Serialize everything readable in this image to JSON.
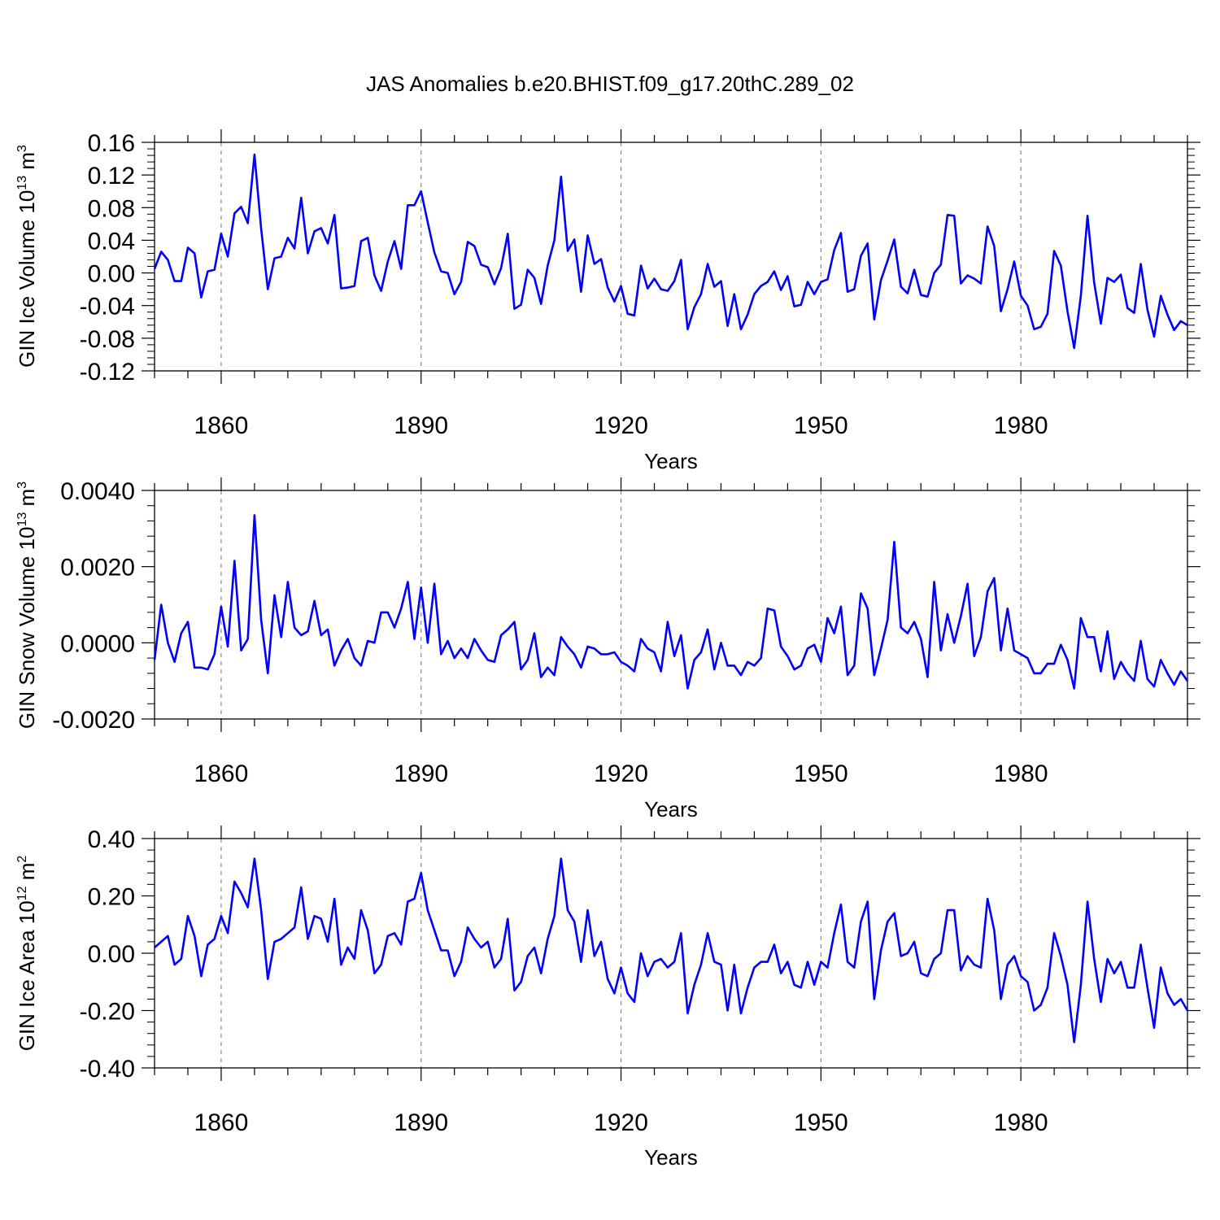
{
  "figure": {
    "title": "JAS Anomalies b.e20.BHIST.f09_g17.20thC.289_02",
    "line_color": "#0000ff",
    "grid_color": "#888888"
  },
  "chart_data": [
    {
      "type": "line",
      "name": "ice-volume",
      "ylabel": "GIN Ice Volume 10",
      "ylabel_exp": "13",
      "ylabel_unit": " m",
      "ylabel_unit_exp": "3",
      "xlabel": "Years",
      "xlim": [
        1850,
        2005
      ],
      "ylim": [
        -0.12,
        0.16
      ],
      "yticks": [
        -0.12,
        -0.08,
        -0.04,
        0.0,
        0.04,
        0.08,
        0.12,
        0.16
      ],
      "ytick_labels": [
        "-0.12",
        "-0.08",
        "-0.04",
        "0.00",
        "0.04",
        "0.08",
        "0.12",
        "0.16"
      ],
      "xticks": [
        1860,
        1890,
        1920,
        1950,
        1980
      ],
      "xtick_labels": [
        "1860",
        "1890",
        "1920",
        "1950",
        "1980"
      ],
      "x_start": 1850,
      "values": [
        0.005,
        0.026,
        0.016,
        -0.01,
        -0.01,
        0.031,
        0.024,
        -0.03,
        0.002,
        0.004,
        0.048,
        0.02,
        0.073,
        0.081,
        0.061,
        0.145,
        0.054,
        -0.02,
        0.018,
        0.02,
        0.043,
        0.03,
        0.092,
        0.024,
        0.051,
        0.055,
        0.036,
        0.071,
        -0.019,
        -0.018,
        -0.016,
        0.039,
        0.043,
        -0.003,
        -0.022,
        0.014,
        0.039,
        0.005,
        0.083,
        0.083,
        0.1,
        0.062,
        0.025,
        0.002,
        0.0,
        -0.026,
        -0.011,
        0.038,
        0.033,
        0.01,
        0.007,
        -0.014,
        0.006,
        0.048,
        -0.044,
        -0.039,
        0.004,
        -0.006,
        -0.038,
        0.009,
        0.04,
        0.118,
        0.027,
        0.041,
        -0.023,
        0.046,
        0.011,
        0.017,
        -0.018,
        -0.035,
        -0.016,
        -0.05,
        -0.052,
        0.009,
        -0.019,
        -0.007,
        -0.02,
        -0.022,
        -0.01,
        0.016,
        -0.069,
        -0.042,
        -0.026,
        0.011,
        -0.017,
        -0.01,
        -0.065,
        -0.026,
        -0.069,
        -0.051,
        -0.026,
        -0.016,
        -0.011,
        0.002,
        -0.021,
        -0.004,
        -0.041,
        -0.039,
        -0.011,
        -0.026,
        -0.011,
        -0.008,
        0.028,
        0.049,
        -0.023,
        -0.02,
        0.021,
        0.036,
        -0.057,
        -0.009,
        0.015,
        0.041,
        -0.017,
        -0.025,
        0.004,
        -0.027,
        -0.029,
        0.0,
        0.01,
        0.071,
        0.07,
        -0.013,
        -0.003,
        -0.007,
        -0.013,
        0.057,
        0.033,
        -0.047,
        -0.02,
        0.014,
        -0.028,
        -0.04,
        -0.069,
        -0.066,
        -0.05,
        0.027,
        0.009,
        -0.047,
        -0.092,
        -0.028,
        0.07,
        -0.012,
        -0.062,
        -0.006,
        -0.011,
        -0.002,
        -0.043,
        -0.049,
        0.011,
        -0.045,
        -0.078,
        -0.028,
        -0.051,
        -0.07,
        -0.059,
        -0.064
      ]
    },
    {
      "type": "line",
      "name": "snow-volume",
      "ylabel": "GIN Snow Volume 10",
      "ylabel_exp": "13",
      "ylabel_unit": " m",
      "ylabel_unit_exp": "3",
      "xlabel": "Years",
      "xlim": [
        1850,
        2005
      ],
      "ylim": [
        -0.002,
        0.004
      ],
      "yticks": [
        -0.002,
        0.0,
        0.002,
        0.004
      ],
      "ytick_labels": [
        "-0.0020",
        "0.0000",
        "0.0020",
        "0.0040"
      ],
      "xticks": [
        1860,
        1890,
        1920,
        1950,
        1980
      ],
      "xtick_labels": [
        "1860",
        "1890",
        "1920",
        "1950",
        "1980"
      ],
      "x_start": 1850,
      "values": [
        -0.00045,
        0.001,
        0.0,
        -0.0005,
        0.00025,
        0.00055,
        -0.00065,
        -0.00065,
        -0.0007,
        -0.0003,
        0.00095,
        -0.0001,
        0.00215,
        -0.0002,
        0.0001,
        0.00335,
        0.0006,
        -0.0008,
        0.00125,
        0.00015,
        0.0016,
        0.0004,
        0.0002,
        0.0003,
        0.0011,
        0.0002,
        0.00035,
        -0.0006,
        -0.0002,
        0.0001,
        -0.0004,
        -0.0006,
        5e-05,
        0.0,
        0.0008,
        0.0008,
        0.0004,
        0.0009,
        0.0016,
        0.0001,
        0.00145,
        0.0,
        0.00155,
        -0.0003,
        5e-05,
        -0.0004,
        -0.00015,
        -0.0004,
        0.0001,
        -0.0002,
        -0.00045,
        -0.0005,
        0.0002,
        0.00035,
        0.00055,
        -0.0007,
        -0.00045,
        0.00025,
        -0.0009,
        -0.00065,
        -0.00085,
        0.00015,
        -0.0001,
        -0.0003,
        -0.00065,
        -0.0001,
        -0.00015,
        -0.0003,
        -0.0003,
        -0.00025,
        -0.0005,
        -0.0006,
        -0.00075,
        0.0001,
        -0.00015,
        -0.00025,
        -0.00075,
        0.00055,
        -0.00035,
        0.0002,
        -0.0012,
        -0.00045,
        -0.00025,
        0.00035,
        -0.0007,
        0.0,
        -0.0006,
        -0.0006,
        -0.00085,
        -0.0005,
        -0.0006,
        -0.0004,
        0.0009,
        0.00085,
        -0.0001,
        -0.00035,
        -0.0007,
        -0.0006,
        -0.00015,
        -5e-05,
        -0.0005,
        0.00065,
        0.00025,
        0.00095,
        -0.00085,
        -0.0006,
        0.0013,
        0.0009,
        -0.00085,
        -0.00015,
        0.0006,
        0.00265,
        0.0004,
        0.00025,
        0.00055,
        0.0001,
        -0.0009,
        0.0016,
        -0.0002,
        0.00075,
        0.0,
        0.0007,
        0.00155,
        -0.00035,
        0.00015,
        0.00135,
        0.0017,
        -0.0002,
        0.0009,
        -0.0002,
        -0.0003,
        -0.0004,
        -0.0008,
        -0.0008,
        -0.00055,
        -0.00055,
        -5e-05,
        -0.00045,
        -0.0012,
        0.00065,
        0.00015,
        0.00015,
        -0.00075,
        0.0003,
        -0.00095,
        -0.0005,
        -0.0008,
        -0.001,
        5e-05,
        -0.00095,
        -0.00115,
        -0.00045,
        -0.0008,
        -0.0011,
        -0.00075,
        -0.001
      ]
    },
    {
      "type": "line",
      "name": "ice-area",
      "ylabel": "GIN Ice Area 10",
      "ylabel_exp": "12",
      "ylabel_unit": " m",
      "ylabel_unit_exp": "2",
      "xlabel": "Years",
      "xlim": [
        1850,
        2005
      ],
      "ylim": [
        -0.4,
        0.4
      ],
      "yticks": [
        -0.4,
        -0.2,
        0.0,
        0.2,
        0.4
      ],
      "ytick_labels": [
        "-0.40",
        "-0.20",
        "0.00",
        "0.20",
        "0.40"
      ],
      "xticks": [
        1860,
        1890,
        1920,
        1950,
        1980
      ],
      "xtick_labels": [
        "1860",
        "1890",
        "1920",
        "1950",
        "1980"
      ],
      "x_start": 1850,
      "values": [
        0.02,
        0.04,
        0.06,
        -0.04,
        -0.02,
        0.13,
        0.06,
        -0.08,
        0.03,
        0.05,
        0.13,
        0.07,
        0.25,
        0.21,
        0.16,
        0.33,
        0.15,
        -0.09,
        0.04,
        0.05,
        0.07,
        0.09,
        0.23,
        0.05,
        0.13,
        0.12,
        0.04,
        0.19,
        -0.04,
        0.02,
        -0.02,
        0.15,
        0.08,
        -0.07,
        -0.04,
        0.06,
        0.07,
        0.03,
        0.18,
        0.19,
        0.28,
        0.15,
        0.08,
        0.01,
        0.01,
        -0.08,
        -0.03,
        0.09,
        0.05,
        0.02,
        0.04,
        -0.05,
        -0.02,
        0.12,
        -0.13,
        -0.1,
        -0.01,
        0.02,
        -0.07,
        0.05,
        0.13,
        0.33,
        0.15,
        0.11,
        -0.03,
        0.15,
        -0.01,
        0.04,
        -0.09,
        -0.14,
        -0.05,
        -0.14,
        -0.17,
        0.0,
        -0.08,
        -0.03,
        -0.02,
        -0.05,
        -0.03,
        0.07,
        -0.21,
        -0.11,
        -0.04,
        0.07,
        -0.03,
        -0.04,
        -0.2,
        -0.04,
        -0.21,
        -0.12,
        -0.05,
        -0.03,
        -0.03,
        0.03,
        -0.07,
        -0.03,
        -0.11,
        -0.12,
        -0.03,
        -0.11,
        -0.03,
        -0.05,
        0.07,
        0.17,
        -0.03,
        -0.05,
        0.11,
        0.18,
        -0.16,
        0.01,
        0.11,
        0.14,
        -0.01,
        0.0,
        0.04,
        -0.07,
        -0.08,
        -0.02,
        0.0,
        0.15,
        0.15,
        -0.06,
        -0.01,
        -0.04,
        -0.05,
        0.19,
        0.08,
        -0.16,
        -0.04,
        -0.01,
        -0.08,
        -0.1,
        -0.2,
        -0.18,
        -0.12,
        0.07,
        -0.01,
        -0.11,
        -0.31,
        -0.11,
        0.18,
        -0.02,
        -0.17,
        -0.02,
        -0.07,
        -0.03,
        -0.12,
        -0.12,
        0.03,
        -0.12,
        -0.26,
        -0.05,
        -0.14,
        -0.18,
        -0.16,
        -0.2
      ]
    }
  ]
}
